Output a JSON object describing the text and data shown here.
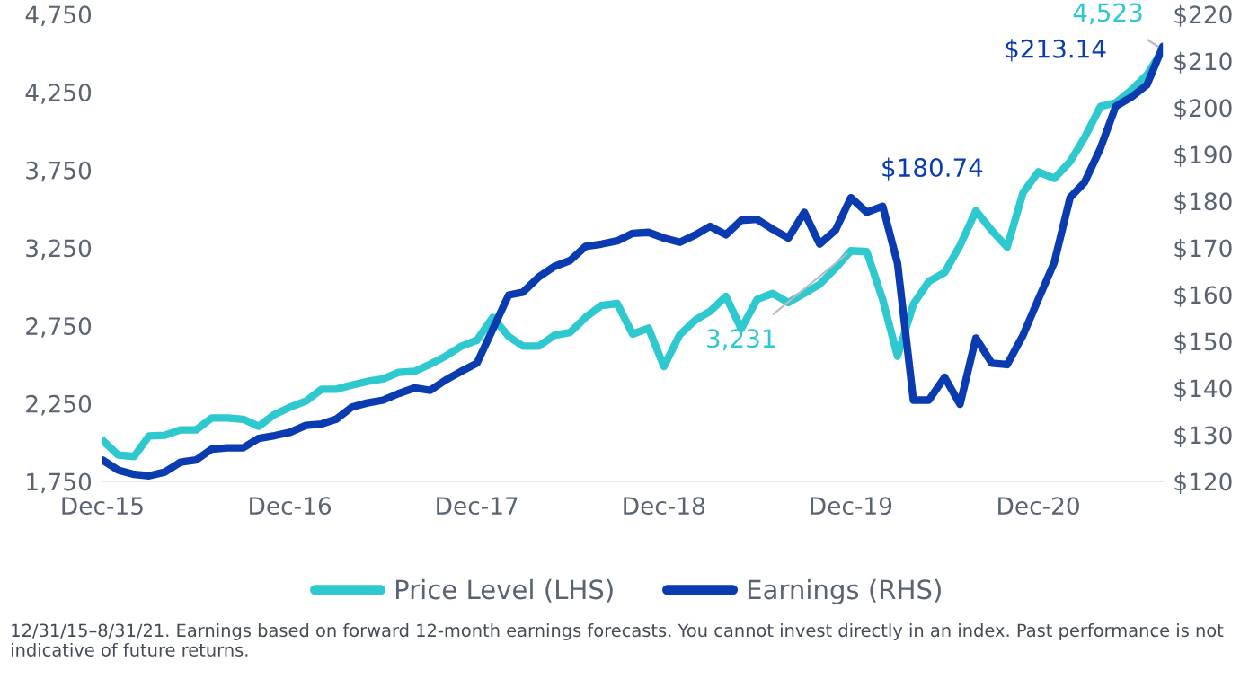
{
  "chart_data": {
    "type": "line",
    "x": [
      "2015-12",
      "2016-01",
      "2016-02",
      "2016-03",
      "2016-04",
      "2016-05",
      "2016-06",
      "2016-07",
      "2016-08",
      "2016-09",
      "2016-10",
      "2016-11",
      "2016-12",
      "2017-01",
      "2017-02",
      "2017-03",
      "2017-04",
      "2017-05",
      "2017-06",
      "2017-07",
      "2017-08",
      "2017-09",
      "2017-10",
      "2017-11",
      "2017-12",
      "2018-01",
      "2018-02",
      "2018-03",
      "2018-04",
      "2018-05",
      "2018-06",
      "2018-07",
      "2018-08",
      "2018-09",
      "2018-10",
      "2018-11",
      "2018-12",
      "2019-01",
      "2019-02",
      "2019-03",
      "2019-04",
      "2019-05",
      "2019-06",
      "2019-07",
      "2019-08",
      "2019-09",
      "2019-10",
      "2019-11",
      "2019-12",
      "2020-01",
      "2020-02",
      "2020-03",
      "2020-04",
      "2020-05",
      "2020-06",
      "2020-07",
      "2020-08",
      "2020-09",
      "2020-10",
      "2020-11",
      "2020-12",
      "2021-01",
      "2021-02",
      "2021-03",
      "2021-04",
      "2021-05",
      "2021-06",
      "2021-07",
      "2021-08"
    ],
    "series": [
      {
        "name": "Price Level (LHS)",
        "color": "#2ec9cf",
        "values": [
          2015,
          1919,
          1910,
          2042,
          2046,
          2081,
          2081,
          2157,
          2157,
          2149,
          2104,
          2180,
          2226,
          2265,
          2342,
          2342,
          2369,
          2392,
          2408,
          2450,
          2457,
          2503,
          2554,
          2619,
          2657,
          2803,
          2681,
          2619,
          2619,
          2688,
          2707,
          2803,
          2880,
          2892,
          2696,
          2734,
          2488,
          2692,
          2788,
          2842,
          2938,
          2730,
          2919,
          2957,
          2899,
          2957,
          3015,
          3119,
          3231,
          3225,
          2919,
          2554,
          2888,
          3034,
          3092,
          3265,
          3488,
          3361,
          3254,
          3604,
          3738,
          3696,
          3804,
          3957,
          4158,
          4181,
          4265,
          4361,
          4523
        ]
      },
      {
        "name": "Earnings (RHS)",
        "color": "#0a3bb0",
        "axis": "y2",
        "values": [
          124.6,
          122.4,
          121.5,
          121.2,
          122.0,
          124.1,
          124.6,
          126.9,
          127.2,
          127.2,
          129.2,
          129.8,
          130.5,
          132.0,
          132.3,
          133.3,
          135.9,
          136.8,
          137.4,
          138.8,
          140.0,
          139.5,
          141.7,
          143.6,
          145.3,
          152.6,
          159.9,
          160.5,
          163.8,
          166.0,
          167.3,
          170.3,
          170.8,
          171.5,
          173.1,
          173.3,
          172.1,
          171.2,
          172.8,
          174.6,
          172.8,
          175.9,
          176.1,
          174.0,
          172.1,
          177.6,
          170.8,
          173.8,
          180.74,
          177.6,
          178.9,
          166.7,
          137.4,
          137.4,
          142.3,
          136.5,
          150.7,
          145.3,
          145.0,
          151.3,
          159.0,
          166.9,
          180.8,
          184.0,
          191.3,
          200.3,
          202.3,
          204.9,
          213.14
        ]
      }
    ],
    "xticks": [
      {
        "value": "2015-12",
        "label": "Dec-15"
      },
      {
        "value": "2016-12",
        "label": "Dec-16"
      },
      {
        "value": "2017-12",
        "label": "Dec-17"
      },
      {
        "value": "2018-12",
        "label": "Dec-18"
      },
      {
        "value": "2019-12",
        "label": "Dec-19"
      },
      {
        "value": "2020-12",
        "label": "Dec-20"
      }
    ],
    "xlim": [
      "2015-12",
      "2021-08"
    ],
    "ylim": [
      1750,
      4750
    ],
    "yticks": [
      {
        "value": 1750,
        "label": "1,750"
      },
      {
        "value": 2250,
        "label": "2,250"
      },
      {
        "value": 2750,
        "label": "2,750"
      },
      {
        "value": 3250,
        "label": "3,250"
      },
      {
        "value": 3750,
        "label": "3,750"
      },
      {
        "value": 4250,
        "label": "4,250"
      },
      {
        "value": 4750,
        "label": "4,750"
      }
    ],
    "y2lim": [
      120,
      220
    ],
    "y2ticks": [
      {
        "value": 120,
        "label": "$120"
      },
      {
        "value": 130,
        "label": "$130"
      },
      {
        "value": 140,
        "label": "$140"
      },
      {
        "value": 150,
        "label": "$150"
      },
      {
        "value": 160,
        "label": "$160"
      },
      {
        "value": 170,
        "label": "$170"
      },
      {
        "value": 180,
        "label": "$180"
      },
      {
        "value": 190,
        "label": "$190"
      },
      {
        "value": 200,
        "label": "$200"
      },
      {
        "value": 210,
        "label": "$210"
      },
      {
        "value": 220,
        "label": "$220"
      }
    ],
    "grid": false,
    "legend": "bottom",
    "marker": "none",
    "line_style": "solid",
    "annotations": [
      {
        "text": "4,523",
        "x": "2021-08",
        "y": 4523
      },
      "$213.14",
      "$180.74",
      {
        "text": "3,231",
        "x": "2019-12",
        "y": 3231
      },
      "12/31/15–8/31/21. Earnings based on forward 12-month earnings forecasts. You cannot invest directly in an index. Past performance is not indicative of future returns."
    ]
  }
}
